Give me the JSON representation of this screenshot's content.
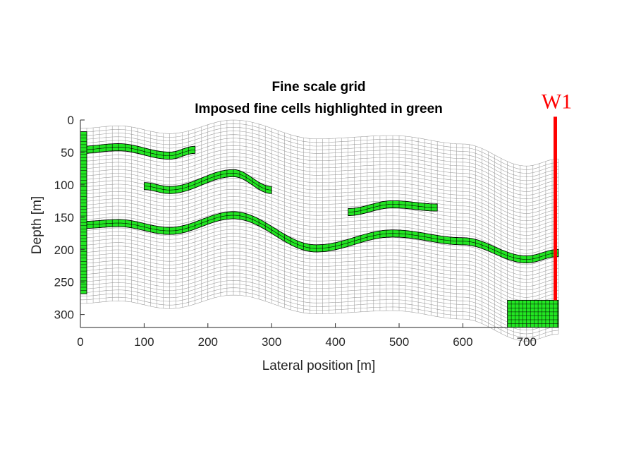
{
  "chart_data": {
    "type": "mesh",
    "title_lines": [
      "Fine scale grid",
      "Imposed fine cells highlighted in green"
    ],
    "xlabel": "Lateral position [m]",
    "ylabel": "Depth [m]",
    "xlim": [
      0,
      750
    ],
    "ylim": [
      0,
      320
    ],
    "y_reversed": true,
    "xticks": [
      0,
      100,
      200,
      300,
      400,
      500,
      600,
      700
    ],
    "yticks": [
      0,
      50,
      100,
      150,
      200,
      250,
      300
    ],
    "grid": false,
    "colors": {
      "mesh": "#9a9a9a",
      "highlight": "#22e622",
      "cell_edge": "#000000",
      "well": "#ff0000",
      "axis": "#262626"
    },
    "grid_top_profile": {
      "x": [
        0,
        60,
        140,
        240,
        370,
        490,
        600,
        700,
        750
      ],
      "depth": [
        13,
        9,
        21,
        0,
        29,
        24,
        37,
        71,
        60
      ]
    },
    "grid_thickness": 270,
    "highlighted_layers": [
      {
        "x": [
          0,
          60,
          140,
          180
        ],
        "depth": [
          46,
          42,
          55,
          46
        ]
      },
      {
        "x": [
          100,
          140,
          240,
          300
        ],
        "depth": [
          102,
          108,
          82,
          108
        ]
      },
      {
        "x": [
          0,
          60,
          140,
          240,
          370,
          490,
          600,
          700,
          750
        ],
        "depth": [
          162,
          159,
          171,
          147,
          198,
          175,
          187,
          215,
          205
        ]
      },
      {
        "x": [
          420,
          490,
          560
        ],
        "depth": [
          142,
          130,
          135
        ]
      }
    ],
    "highlighted_column": {
      "x": [
        0,
        10
      ],
      "depth": [
        18,
        268
      ]
    },
    "highlighted_block": {
      "x": [
        670,
        750
      ],
      "depth": [
        278,
        320
      ]
    },
    "wells": [
      {
        "name": "W1",
        "x": 745,
        "depth_top": -5,
        "depth_bottom": 278
      }
    ]
  }
}
